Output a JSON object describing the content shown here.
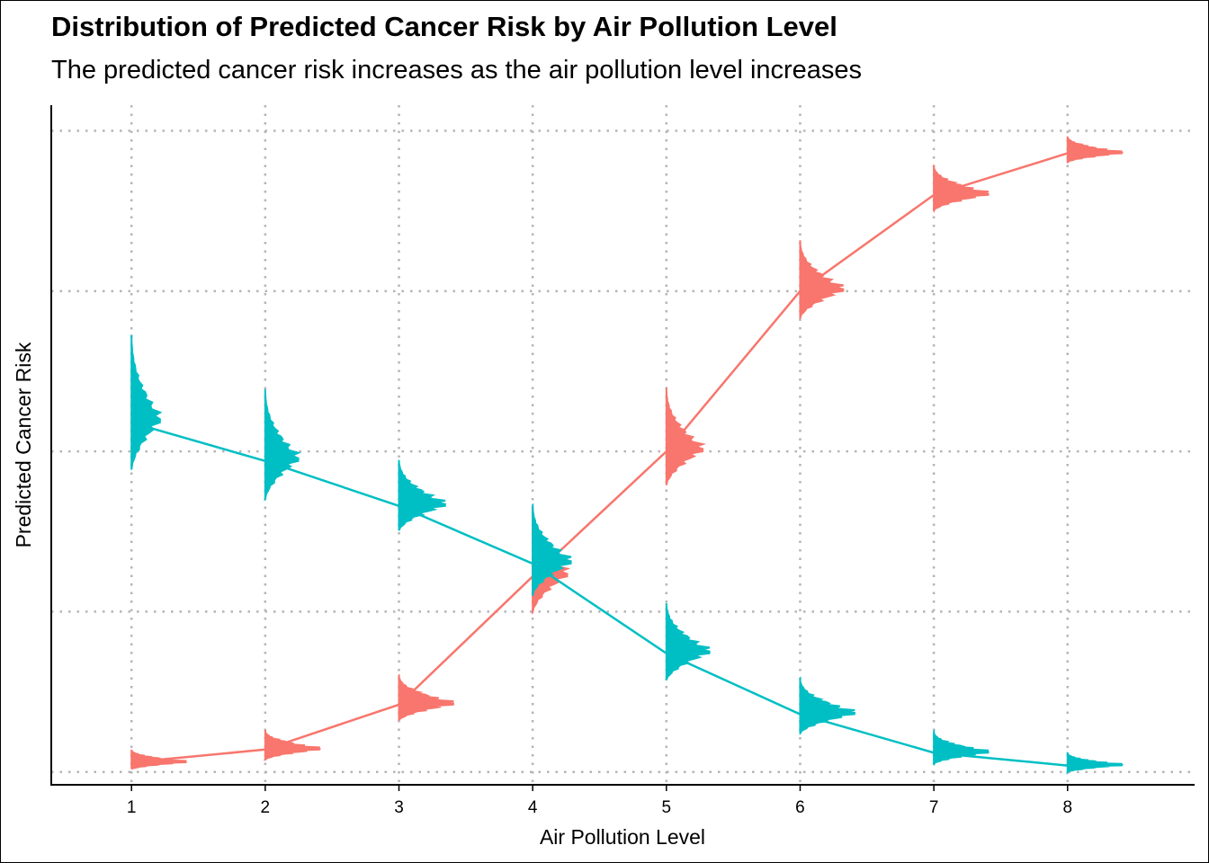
{
  "chart_data": {
    "type": "line",
    "title": "Distribution of Predicted Cancer Risk by Air Pollution Level",
    "subtitle": "The predicted cancer risk increases as the air pollution level increases",
    "xlabel": "Air Pollution Level",
    "ylabel": "Predicted Cancer Risk",
    "x": [
      1,
      2,
      3,
      4,
      5,
      6,
      7,
      8
    ],
    "x_tick_labels": [
      "1",
      "2",
      "3",
      "4",
      "5",
      "6",
      "7",
      "8"
    ],
    "y_tick_labels": [],
    "xlim": [
      0.4,
      8.95
    ],
    "ylim": [
      -0.02,
      1.04
    ],
    "grid": "dotted, major x and y",
    "legend": "none",
    "series": [
      {
        "color": "#F8766D",
        "values": [
          0.015,
          0.035,
          0.105,
          0.305,
          0.5,
          0.75,
          0.9,
          0.965
        ],
        "spread": [
          0.03,
          0.045,
          0.07,
          0.16,
          0.15,
          0.12,
          0.07,
          0.04
        ],
        "skew": "right"
      },
      {
        "color": "#00BFC4",
        "values": [
          0.545,
          0.485,
          0.415,
          0.325,
          0.185,
          0.09,
          0.03,
          0.01
        ],
        "spread": [
          0.21,
          0.17,
          0.11,
          0.14,
          0.12,
          0.085,
          0.05,
          0.03
        ],
        "skew": "right"
      }
    ]
  }
}
